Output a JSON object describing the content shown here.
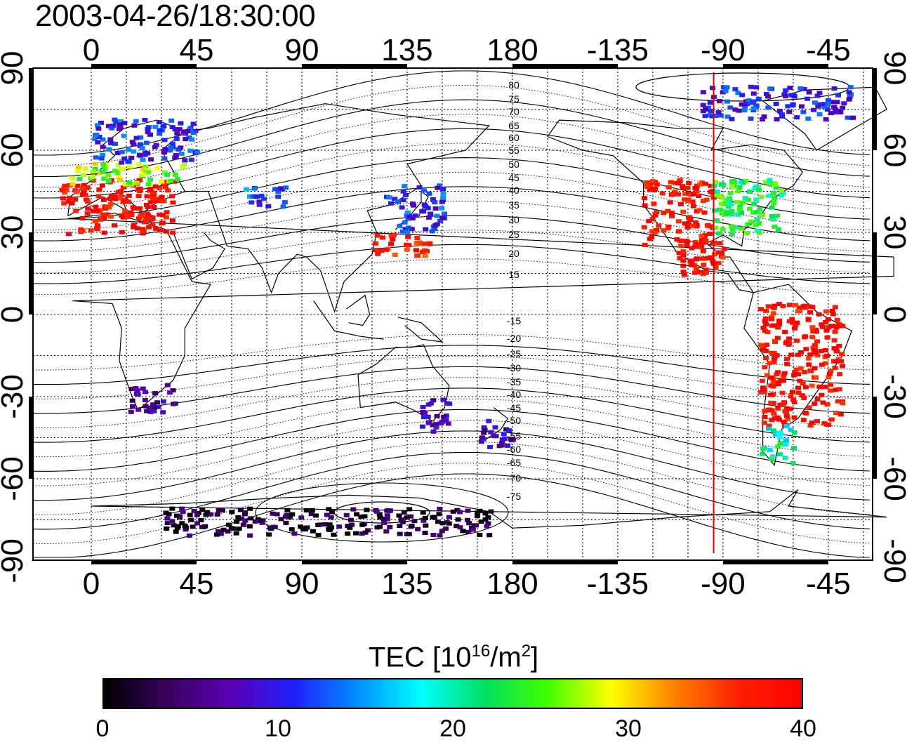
{
  "title": "2003-04-26/18:30:00",
  "map": {
    "lon_ticks_top": [
      "0",
      "45",
      "90",
      "135",
      "180",
      "-135",
      "-90",
      "-45"
    ],
    "lon_ticks_bottom": [
      "0",
      "45",
      "90",
      "135",
      "180",
      "-135",
      "-90",
      "-45"
    ],
    "lat_ticks_left": [
      "90",
      "60",
      "30",
      "0",
      "-30",
      "-60",
      "-90"
    ],
    "lat_ticks_right": [
      "90",
      "60",
      "30",
      "0",
      "-30",
      "-60",
      "-90"
    ],
    "magnetic_lat_labels": [
      "80",
      "75",
      "70",
      "65",
      "60",
      "55",
      "50",
      "45",
      "40",
      "35",
      "30",
      "25",
      "20",
      "15",
      "-15",
      "-20",
      "-25",
      "-30",
      "-35",
      "-40",
      "-45",
      "-50",
      "-55",
      "-60",
      "-65",
      "-70",
      "-75"
    ],
    "marker_line_color": "#e00000"
  },
  "colorbar": {
    "label_main": "TEC  [10",
    "label_exp1": "16",
    "label_mid": "/m",
    "label_exp2": "2",
    "label_end": "]",
    "ticks": [
      "0",
      "10",
      "20",
      "30",
      "40"
    ],
    "colormap": [
      "#000000",
      "#3a0060",
      "#5a00b4",
      "#2020ff",
      "#0090ff",
      "#00ffff",
      "#00e060",
      "#40ff00",
      "#ffff00",
      "#ff8000",
      "#ff2000",
      "#ff0000"
    ]
  },
  "chart_data": {
    "type": "heatmap",
    "title": "2003-04-26/18:30:00",
    "colorbar_label": "TEC [10^16/m^2]",
    "value_range": [
      0,
      40
    ],
    "regions": [
      {
        "lon_min": -20,
        "lon_max": 35,
        "lat_min": 30,
        "lat_max": 50,
        "value": 39
      },
      {
        "lon_min": -10,
        "lon_max": 40,
        "lat_min": 48,
        "lat_max": 56,
        "value": 27
      },
      {
        "lon_min": 0,
        "lon_max": 45,
        "lat_min": 56,
        "lat_max": 72,
        "value": 11
      },
      {
        "lon_min": 125,
        "lon_max": 150,
        "lat_min": 30,
        "lat_max": 48,
        "value": 11
      },
      {
        "lon_min": 120,
        "lon_max": 145,
        "lat_min": 22,
        "lat_max": 30,
        "value": 37
      },
      {
        "lon_min": 62,
        "lon_max": 82,
        "lat_min": 40,
        "lat_max": 48,
        "value": 12
      },
      {
        "lon_min": -125,
        "lon_max": -95,
        "lat_min": 25,
        "lat_max": 50,
        "value": 39
      },
      {
        "lon_min": -95,
        "lon_max": -65,
        "lat_min": 30,
        "lat_max": 50,
        "value": 23
      },
      {
        "lon_min": -110,
        "lon_max": -90,
        "lat_min": 15,
        "lat_max": 28,
        "value": 39
      },
      {
        "lon_min": -75,
        "lon_max": -40,
        "lat_min": -40,
        "lat_max": 5,
        "value": 39
      },
      {
        "lon_min": -75,
        "lon_max": -60,
        "lat_min": -55,
        "lat_max": -40,
        "value": 20
      },
      {
        "lon_min": 15,
        "lon_max": 35,
        "lat_min": -35,
        "lat_max": -25,
        "value": 6
      },
      {
        "lon_min": 140,
        "lon_max": 155,
        "lat_min": -42,
        "lat_max": -30,
        "value": 8
      },
      {
        "lon_min": 165,
        "lon_max": 180,
        "lat_min": -48,
        "lat_max": -38,
        "value": 7
      },
      {
        "lon_min": 30,
        "lon_max": 170,
        "lat_min": -80,
        "lat_max": -70,
        "value": 2
      },
      {
        "lon_min": -100,
        "lon_max": -35,
        "lat_min": 72,
        "lat_max": 84,
        "value": 10
      }
    ]
  }
}
